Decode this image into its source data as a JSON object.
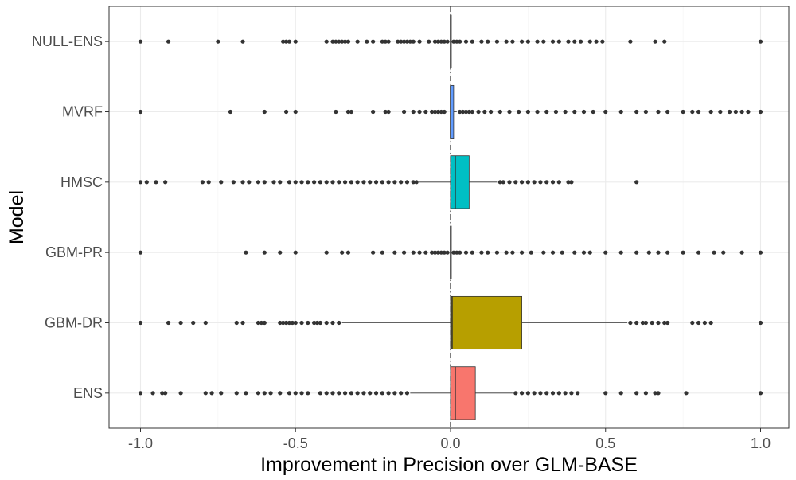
{
  "chart_data": {
    "type": "boxplot",
    "orientation": "horizontal",
    "xlabel": "Improvement in Precision over GLM-BASE",
    "ylabel": "Model",
    "xlim": [
      -1.1,
      1.1
    ],
    "x_ticks": [
      -1.0,
      -0.5,
      0.0,
      0.5,
      1.0
    ],
    "x_tick_labels": [
      "-1.0",
      "-0.5",
      "0.0",
      "0.5",
      "1.0"
    ],
    "reference_line": {
      "x": 0,
      "style": "dashdot"
    },
    "grid": true,
    "legend": "none",
    "categories": [
      "NULL-ENS",
      "MVRF",
      "HMSC",
      "GBM-PR",
      "GBM-DR",
      "ENS"
    ],
    "boxes": [
      {
        "category": "NULL-ENS",
        "color": "#F564E3",
        "q1": 0.0,
        "median": 0.0,
        "q3": 0.0,
        "whisker_low": 0.0,
        "whisker_high": 0.0,
        "outliers": [
          -1.0,
          -0.91,
          -0.75,
          -0.67,
          -0.54,
          -0.53,
          -0.52,
          -0.5,
          -0.4,
          -0.38,
          -0.37,
          -0.36,
          -0.35,
          -0.34,
          -0.33,
          -0.3,
          -0.27,
          -0.25,
          -0.22,
          -0.21,
          -0.2,
          -0.17,
          -0.16,
          -0.15,
          -0.14,
          -0.13,
          -0.12,
          -0.1,
          -0.07,
          -0.05,
          -0.04,
          -0.03,
          -0.02,
          -0.01,
          0.01,
          0.02,
          0.03,
          0.05,
          0.07,
          0.1,
          0.12,
          0.15,
          0.18,
          0.2,
          0.23,
          0.25,
          0.28,
          0.3,
          0.33,
          0.35,
          0.38,
          0.4,
          0.42,
          0.45,
          0.47,
          0.49,
          0.58,
          0.66,
          0.69,
          1.0
        ]
      },
      {
        "category": "MVRF",
        "color": "#619CFF",
        "q1": 0.0,
        "median": 0.0,
        "q3": 0.01,
        "whisker_low": 0.0,
        "whisker_high": 0.02,
        "outliers": [
          -1.0,
          -0.71,
          -0.6,
          -0.53,
          -0.5,
          -0.37,
          -0.33,
          -0.32,
          -0.25,
          -0.21,
          -0.2,
          -0.15,
          -0.12,
          -0.1,
          -0.08,
          -0.06,
          -0.05,
          -0.04,
          -0.03,
          -0.02,
          0.03,
          0.04,
          0.05,
          0.06,
          0.07,
          0.09,
          0.11,
          0.13,
          0.16,
          0.19,
          0.22,
          0.25,
          0.28,
          0.31,
          0.34,
          0.37,
          0.4,
          0.43,
          0.46,
          0.5,
          0.55,
          0.6,
          0.63,
          0.67,
          0.7,
          0.75,
          0.78,
          0.8,
          0.84,
          0.87,
          0.9,
          0.92,
          0.94,
          0.96,
          1.0
        ]
      },
      {
        "category": "HMSC",
        "color": "#00BFC4",
        "q1": 0.0,
        "median": 0.015,
        "q3": 0.06,
        "whisker_low": -0.1,
        "whisker_high": 0.15,
        "outliers": [
          -1.0,
          -0.98,
          -0.95,
          -0.92,
          -0.8,
          -0.78,
          -0.74,
          -0.7,
          -0.67,
          -0.65,
          -0.62,
          -0.6,
          -0.57,
          -0.55,
          -0.52,
          -0.5,
          -0.48,
          -0.46,
          -0.44,
          -0.42,
          -0.4,
          -0.38,
          -0.36,
          -0.34,
          -0.32,
          -0.3,
          -0.28,
          -0.26,
          -0.24,
          -0.22,
          -0.2,
          -0.18,
          -0.16,
          -0.14,
          -0.12,
          -0.11,
          0.16,
          0.17,
          0.19,
          0.21,
          0.23,
          0.25,
          0.27,
          0.29,
          0.31,
          0.33,
          0.35,
          0.38,
          0.39,
          0.6
        ]
      },
      {
        "category": "GBM-PR",
        "color": "#00BA38",
        "q1": 0.0,
        "median": 0.0,
        "q3": 0.0,
        "whisker_low": 0.0,
        "whisker_high": 0.0,
        "outliers": [
          -1.0,
          -0.66,
          -0.6,
          -0.55,
          -0.5,
          -0.4,
          -0.35,
          -0.33,
          -0.25,
          -0.22,
          -0.18,
          -0.15,
          -0.12,
          -0.1,
          -0.08,
          -0.06,
          -0.05,
          -0.04,
          -0.03,
          -0.02,
          -0.01,
          0.01,
          0.02,
          0.03,
          0.05,
          0.07,
          0.1,
          0.12,
          0.15,
          0.18,
          0.2,
          0.23,
          0.26,
          0.3,
          0.33,
          0.36,
          0.4,
          0.43,
          0.45,
          0.5,
          0.55,
          0.6,
          0.64,
          0.67,
          0.7,
          0.75,
          0.8,
          0.85,
          0.88,
          0.94,
          1.0
        ]
      },
      {
        "category": "GBM-DR",
        "color": "#B79F00",
        "q1": 0.0,
        "median": 0.005,
        "q3": 0.23,
        "whisker_low": -0.35,
        "whisker_high": 0.57,
        "outliers": [
          -1.0,
          -0.91,
          -0.87,
          -0.83,
          -0.79,
          -0.69,
          -0.67,
          -0.62,
          -0.61,
          -0.6,
          -0.55,
          -0.54,
          -0.53,
          -0.52,
          -0.51,
          -0.5,
          -0.48,
          -0.46,
          -0.44,
          -0.43,
          -0.42,
          -0.4,
          -0.38,
          -0.36,
          0.58,
          0.6,
          0.62,
          0.63,
          0.65,
          0.67,
          0.69,
          0.7,
          0.78,
          0.8,
          0.82,
          0.84,
          1.0
        ]
      },
      {
        "category": "ENS",
        "color": "#F8766D",
        "q1": 0.0,
        "median": 0.015,
        "q3": 0.08,
        "whisker_low": -0.13,
        "whisker_high": 0.2,
        "outliers": [
          -1.0,
          -0.96,
          -0.93,
          -0.92,
          -0.87,
          -0.79,
          -0.77,
          -0.74,
          -0.69,
          -0.66,
          -0.62,
          -0.6,
          -0.58,
          -0.55,
          -0.52,
          -0.5,
          -0.48,
          -0.46,
          -0.42,
          -0.4,
          -0.38,
          -0.36,
          -0.34,
          -0.32,
          -0.3,
          -0.28,
          -0.26,
          -0.24,
          -0.22,
          -0.2,
          -0.18,
          -0.16,
          -0.14,
          0.21,
          0.23,
          0.25,
          0.27,
          0.29,
          0.31,
          0.33,
          0.35,
          0.37,
          0.39,
          0.41,
          0.5,
          0.55,
          0.6,
          0.63,
          0.66,
          0.67,
          0.76,
          1.0
        ]
      }
    ]
  }
}
